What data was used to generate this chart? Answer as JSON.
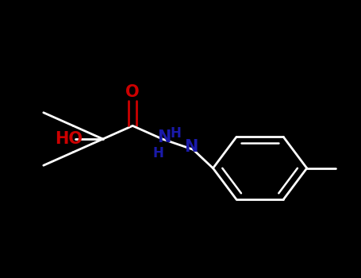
{
  "bg_color": "#000000",
  "fig_bg": "#000000",
  "white": "#ffffff",
  "o_color": "#cc0000",
  "ho_color": "#cc0000",
  "n_color": "#1a1aaa",
  "bond_lw": 2.0,
  "ring_r": 0.13,
  "font_size_atom": 15,
  "font_size_h": 12,
  "xlim": [
    0,
    1
  ],
  "ylim": [
    0,
    1
  ]
}
